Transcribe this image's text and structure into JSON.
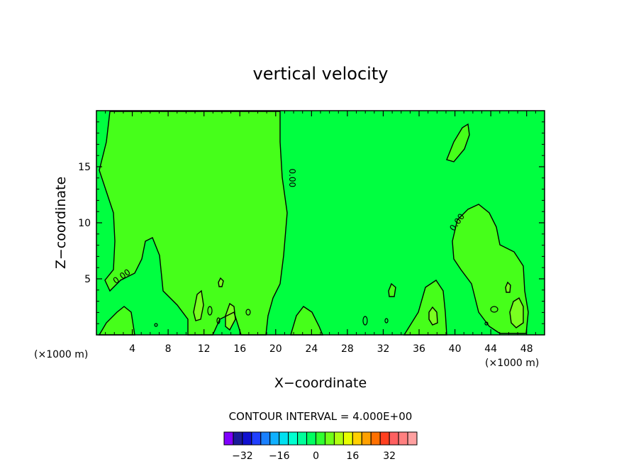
{
  "chart_data": {
    "type": "contour",
    "title": "vertical velocity",
    "xlabel": "X−coordinate",
    "ylabel": "Z−coordinate",
    "x_unit_left": "(×1000 m)",
    "x_unit_right": "(×1000 m)",
    "xlim": [
      0,
      50
    ],
    "ylim": [
      0,
      20
    ],
    "x_ticks": [
      4,
      8,
      12,
      16,
      20,
      24,
      28,
      32,
      36,
      40,
      44,
      48
    ],
    "y_ticks": [
      5,
      10,
      15
    ],
    "contour_labels": [
      {
        "text": "0.00",
        "x": 3.0,
        "y": 5.0,
        "angle": -35
      },
      {
        "text": "0.00",
        "x": 21.5,
        "y": 14.0,
        "angle": 90
      },
      {
        "text": "0.00",
        "x": 40.5,
        "y": 9.9,
        "angle": -55
      }
    ],
    "contour_interval_text": "CONTOUR INTERVAL = 4.000E+00",
    "colorbar": {
      "colors": [
        "#8000ff",
        "#1a1a99",
        "#1010d0",
        "#2040ff",
        "#1a80ff",
        "#10b0ff",
        "#00e0f0",
        "#00ffd0",
        "#00ff9a",
        "#00ff60",
        "#30ff30",
        "#70ff18",
        "#b0ff10",
        "#e8ff00",
        "#ffd000",
        "#ffa000",
        "#ff7000",
        "#ff4020",
        "#ff6060",
        "#ff8080",
        "#ffa0a0"
      ],
      "tick_values": [
        -32,
        -16,
        0,
        16,
        32
      ],
      "tick_labels": [
        "−32",
        "−16",
        "0",
        "16",
        "32"
      ],
      "min": -40,
      "max": 44
    },
    "field_colors": {
      "background": "#00ff40",
      "region_a": "#46ff1a",
      "region_b": "#7aff20"
    }
  }
}
